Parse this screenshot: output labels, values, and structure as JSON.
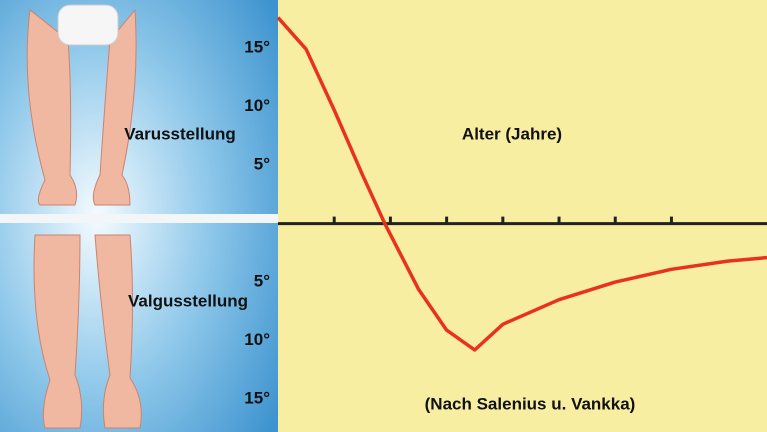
{
  "chart_data": {
    "type": "line",
    "x_label": "Alter (Jahre)",
    "annotations": [
      "Varusstellung",
      "Valgusstellung"
    ],
    "source": "(Nach Salenius u. Vankka)",
    "x": [
      0,
      0.5,
      1,
      1.5,
      1.9,
      2.5,
      3,
      3.5,
      4,
      5,
      6,
      7,
      8,
      8.7
    ],
    "values": [
      17.6,
      14.9,
      9.7,
      4.2,
      0,
      -5.6,
      -9.1,
      -10.8,
      -8.6,
      -6.5,
      -5.0,
      -3.9,
      -3.2,
      -2.9
    ],
    "color": "#e8321e",
    "xlim": [
      0,
      8.7
    ],
    "xticks": [
      1,
      2,
      3,
      4,
      5,
      6,
      7
    ],
    "ylim": [
      -17.8,
      19.1
    ],
    "yticks": [
      {
        "value": 15,
        "label": "15°"
      },
      {
        "value": 10,
        "label": "10°"
      },
      {
        "value": 5,
        "label": "5°"
      },
      {
        "value": -5,
        "label": "5°"
      },
      {
        "value": -10,
        "label": "10°"
      },
      {
        "value": -15,
        "label": "15°"
      }
    ]
  }
}
